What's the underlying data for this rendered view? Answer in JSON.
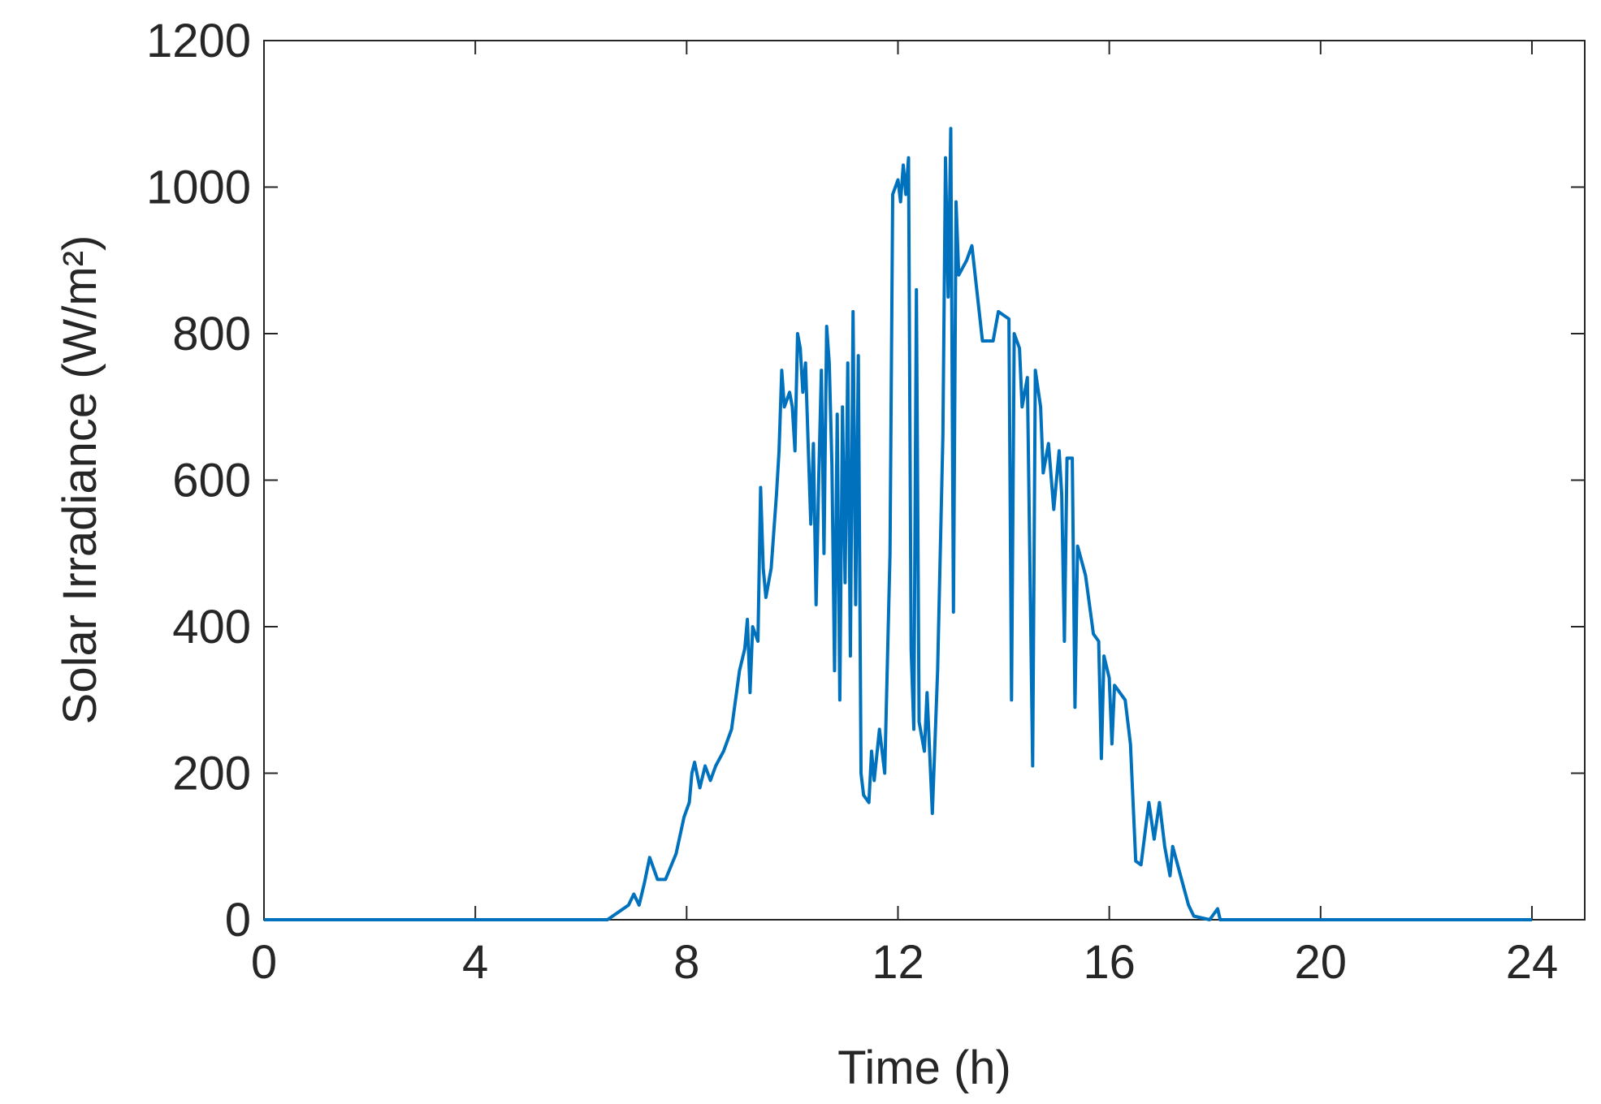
{
  "chart_data": {
    "type": "line",
    "xlabel": "Time (h)",
    "ylabel": "Solar Irradiance (W/m²)",
    "xlim": [
      0,
      25
    ],
    "ylim": [
      0,
      1200
    ],
    "xticks": [
      0,
      4,
      8,
      12,
      16,
      20,
      24
    ],
    "yticks": [
      0,
      200,
      400,
      600,
      800,
      1000,
      1200
    ],
    "grid": false,
    "series": [
      {
        "color": "#0072BD",
        "x": [
          0,
          6.5,
          6.7,
          6.9,
          7.0,
          7.1,
          7.2,
          7.3,
          7.45,
          7.6,
          7.8,
          7.95,
          8.05,
          8.1,
          8.15,
          8.25,
          8.35,
          8.45,
          8.55,
          8.7,
          8.85,
          9.0,
          9.1,
          9.15,
          9.2,
          9.25,
          9.35,
          9.4,
          9.45,
          9.5,
          9.6,
          9.7,
          9.75,
          9.8,
          9.85,
          9.95,
          10.0,
          10.05,
          10.1,
          10.15,
          10.2,
          10.25,
          10.3,
          10.35,
          10.4,
          10.45,
          10.5,
          10.55,
          10.6,
          10.65,
          10.7,
          10.75,
          10.8,
          10.85,
          10.9,
          10.95,
          11.0,
          11.05,
          11.1,
          11.15,
          11.2,
          11.25,
          11.3,
          11.35,
          11.45,
          11.5,
          11.55,
          11.65,
          11.75,
          11.85,
          11.9,
          12.0,
          12.05,
          12.1,
          12.15,
          12.2,
          12.25,
          12.3,
          12.35,
          12.4,
          12.5,
          12.55,
          12.65,
          12.75,
          12.85,
          12.9,
          12.95,
          13.0,
          13.05,
          13.1,
          13.15,
          13.3,
          13.4,
          13.6,
          13.8,
          13.9,
          14.1,
          14.15,
          14.2,
          14.3,
          14.35,
          14.45,
          14.55,
          14.6,
          14.7,
          14.75,
          14.85,
          14.95,
          15.05,
          15.1,
          15.15,
          15.2,
          15.3,
          15.35,
          15.4,
          15.55,
          15.7,
          15.8,
          15.85,
          15.9,
          16.0,
          16.05,
          16.1,
          16.3,
          16.4,
          16.5,
          16.6,
          16.75,
          16.85,
          16.95,
          17.05,
          17.15,
          17.2,
          17.35,
          17.5,
          17.6,
          17.9,
          18.05,
          18.1,
          24
        ],
        "values": [
          0,
          0,
          10,
          20,
          35,
          20,
          50,
          85,
          55,
          55,
          90,
          140,
          160,
          200,
          215,
          180,
          210,
          190,
          210,
          230,
          260,
          340,
          370,
          410,
          310,
          400,
          380,
          590,
          480,
          440,
          480,
          580,
          640,
          750,
          700,
          720,
          700,
          640,
          800,
          780,
          720,
          760,
          650,
          540,
          650,
          430,
          600,
          750,
          500,
          810,
          760,
          620,
          340,
          690,
          300,
          700,
          460,
          760,
          360,
          830,
          430,
          770,
          200,
          170,
          160,
          230,
          190,
          260,
          200,
          500,
          990,
          1010,
          980,
          1030,
          990,
          1040,
          370,
          260,
          860,
          270,
          230,
          310,
          145,
          340,
          660,
          1040,
          850,
          1080,
          420,
          980,
          880,
          900,
          920,
          790,
          790,
          830,
          820,
          300,
          800,
          780,
          700,
          740,
          210,
          750,
          700,
          610,
          650,
          560,
          640,
          580,
          380,
          630,
          630,
          290,
          510,
          470,
          390,
          380,
          220,
          360,
          330,
          240,
          320,
          300,
          240,
          80,
          75,
          160,
          110,
          160,
          100,
          60,
          100,
          60,
          20,
          5,
          0,
          15,
          0,
          0
        ]
      }
    ]
  }
}
